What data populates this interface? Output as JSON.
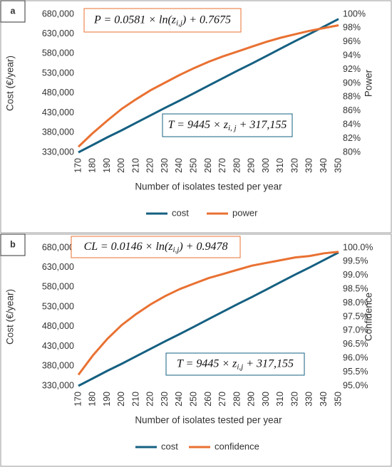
{
  "chart_data": [
    {
      "type": "line",
      "panel": "a",
      "x": [
        170,
        180,
        190,
        200,
        210,
        220,
        230,
        240,
        250,
        260,
        270,
        280,
        290,
        300,
        310,
        320,
        330,
        340,
        350
      ],
      "xlim": [
        170,
        350
      ],
      "xticks": [
        170,
        180,
        190,
        200,
        210,
        220,
        230,
        240,
        250,
        260,
        270,
        280,
        290,
        300,
        310,
        320,
        330,
        340,
        350
      ],
      "xlabel": "Number of isolates tested per year",
      "ylabel": "Cost (€/year)",
      "y2label": "Power",
      "ylim": [
        330000,
        680000
      ],
      "yticks": [
        {
          "value": 330000,
          "label": "330,000"
        },
        {
          "value": 380000,
          "label": "380,000"
        },
        {
          "value": 430000,
          "label": "430,000"
        },
        {
          "value": 480000,
          "label": "480,000"
        },
        {
          "value": 530000,
          "label": "530,000"
        },
        {
          "value": 580000,
          "label": "580,000"
        },
        {
          "value": 630000,
          "label": "630,000"
        },
        {
          "value": 680000,
          "label": "680,000"
        }
      ],
      "y2lim": [
        80,
        100
      ],
      "y2ticks": [
        {
          "value": 80,
          "label": "80%"
        },
        {
          "value": 82,
          "label": "82%"
        },
        {
          "value": 84,
          "label": "84%"
        },
        {
          "value": 86,
          "label": "86%"
        },
        {
          "value": 88,
          "label": "88%"
        },
        {
          "value": 90,
          "label": "90%"
        },
        {
          "value": 92,
          "label": "92%"
        },
        {
          "value": 94,
          "label": "94%"
        },
        {
          "value": 96,
          "label": "96%"
        },
        {
          "value": 98,
          "label": "98%"
        },
        {
          "value": 100,
          "label": "100%"
        }
      ],
      "series": [
        {
          "name": "cost",
          "color": "#156082",
          "axis": "y",
          "values": [
            330000,
            349000,
            368000,
            386000,
            405000,
            424000,
            443000,
            461000,
            480000,
            499000,
            518000,
            537000,
            555000,
            574000,
            593000,
            612000,
            630000,
            649000,
            668000
          ]
        },
        {
          "name": "power",
          "color": "#E97132",
          "axis": "y2",
          "values": [
            80.8,
            82.8,
            84.6,
            86.3,
            87.7,
            89.0,
            90.1,
            91.2,
            92.2,
            93.1,
            93.9,
            94.6,
            95.3,
            96.0,
            96.6,
            97.1,
            97.6,
            98.0,
            98.4
          ]
        }
      ],
      "annotations": [
        {
          "color": "#E97132",
          "parts": [
            "P = 0.0581 × ln(z",
            "i,j",
            ") + 0.7675"
          ]
        },
        {
          "color": "#156082",
          "parts": [
            "T = 9445 × z",
            "i, j",
            " + 317,155"
          ]
        }
      ]
    },
    {
      "type": "line",
      "panel": "b",
      "x": [
        170,
        180,
        190,
        200,
        210,
        220,
        230,
        240,
        250,
        260,
        270,
        280,
        290,
        300,
        310,
        320,
        330,
        340,
        350
      ],
      "xlim": [
        170,
        350
      ],
      "xticks": [
        170,
        180,
        190,
        200,
        210,
        220,
        230,
        240,
        250,
        260,
        270,
        280,
        290,
        300,
        310,
        320,
        330,
        340,
        350
      ],
      "xlabel": "Number of isolates tested per year",
      "ylabel": "Cost (€/year)",
      "y2label": "Confidence",
      "ylim": [
        330000,
        680000
      ],
      "yticks": [
        {
          "value": 330000,
          "label": "330,000"
        },
        {
          "value": 380000,
          "label": "380,000"
        },
        {
          "value": 430000,
          "label": "430,000"
        },
        {
          "value": 480000,
          "label": "480,000"
        },
        {
          "value": 530000,
          "label": "530,000"
        },
        {
          "value": 580000,
          "label": "580,000"
        },
        {
          "value": 630000,
          "label": "630,000"
        },
        {
          "value": 680000,
          "label": "680,000"
        }
      ],
      "y2lim": [
        95,
        100
      ],
      "y2ticks": [
        {
          "value": 95,
          "label": "95.0%"
        },
        {
          "value": 95.5,
          "label": "95.5%"
        },
        {
          "value": 96,
          "label": "96.0%"
        },
        {
          "value": 96.5,
          "label": "96.5%"
        },
        {
          "value": 97,
          "label": "97.0%"
        },
        {
          "value": 97.5,
          "label": "97.5%"
        },
        {
          "value": 98,
          "label": "98.0%"
        },
        {
          "value": 98.5,
          "label": "98.5%"
        },
        {
          "value": 99,
          "label": "99.0%"
        },
        {
          "value": 99.5,
          "label": "99.5%"
        },
        {
          "value": 100,
          "label": "100.0%"
        }
      ],
      "series": [
        {
          "name": "cost",
          "color": "#156082",
          "axis": "y",
          "values": [
            330000,
            349000,
            368000,
            386000,
            405000,
            424000,
            443000,
            461000,
            480000,
            499000,
            518000,
            537000,
            555000,
            574000,
            593000,
            612000,
            630000,
            649000,
            668000
          ]
        },
        {
          "name": "confidence",
          "color": "#E97132",
          "axis": "y2",
          "values": [
            95.4,
            96.1,
            96.7,
            97.2,
            97.6,
            97.95,
            98.25,
            98.5,
            98.7,
            98.9,
            99.05,
            99.2,
            99.35,
            99.45,
            99.55,
            99.65,
            99.7,
            99.8,
            99.85
          ]
        }
      ],
      "annotations": [
        {
          "color": "#E97132",
          "parts": [
            "CL = 0.0146 × ln(z",
            "i,j",
            ") + 0.9478"
          ]
        },
        {
          "color": "#156082",
          "parts": [
            "T = 9445 × z",
            "i,j",
            " + 317,155"
          ]
        }
      ]
    }
  ]
}
